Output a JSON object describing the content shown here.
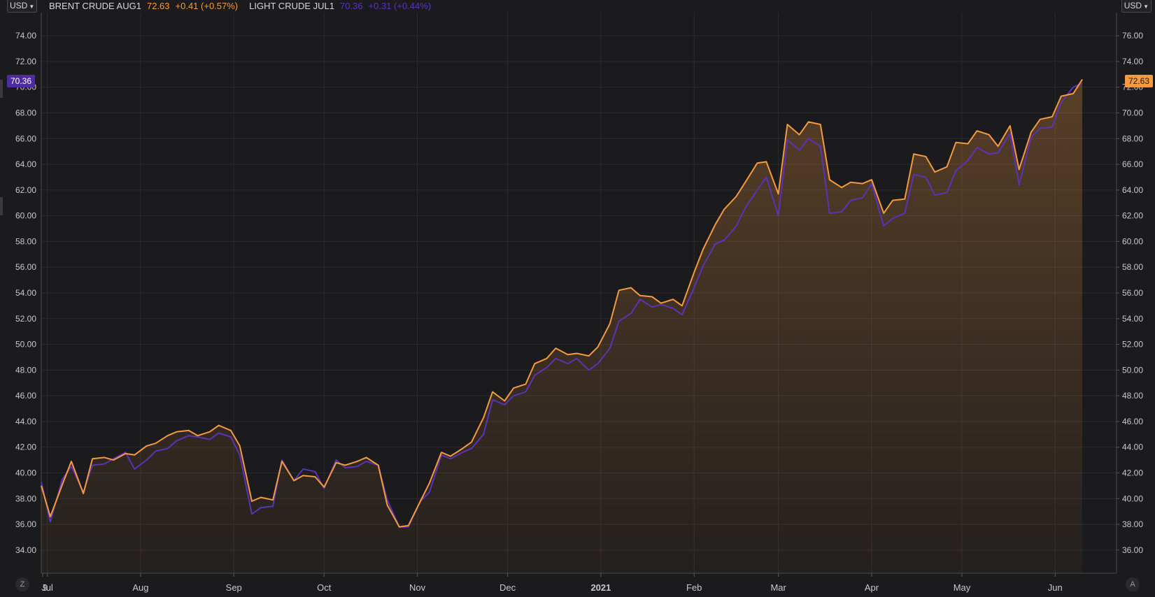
{
  "header": {
    "currency_left": "USD",
    "currency_right": "USD",
    "legend": [
      {
        "name": "BRENT CRUDE AUG1",
        "price": "72.63",
        "change": "+0.41 (+0.57%)",
        "color": "#f59a3f"
      },
      {
        "name": "LIGHT CRUDE JUL1",
        "price": "70.36",
        "change": "+0.31 (+0.44%)",
        "color": "#5a33b8"
      }
    ]
  },
  "price_tags": {
    "left": "70.36",
    "right": "72.63"
  },
  "buttons": {
    "z_label": "Z",
    "a_label": "A"
  },
  "chart_data": {
    "type": "area",
    "title": "",
    "xlabel": "",
    "ylabel": "",
    "x_ticks": [
      "9",
      "Jul",
      "Aug",
      "Sep",
      "Oct",
      "Nov",
      "Dec",
      "2021",
      "Feb",
      "Mar",
      "Apr",
      "May",
      "Jun"
    ],
    "y_ticks_left": [
      "34.00",
      "36.00",
      "38.00",
      "40.00",
      "42.00",
      "44.00",
      "46.00",
      "48.00",
      "50.00",
      "52.00",
      "54.00",
      "56.00",
      "58.00",
      "60.00",
      "62.00",
      "64.00",
      "66.00",
      "68.00",
      "70.00",
      "72.00",
      "74.00"
    ],
    "y_ticks_right": [
      "36.00",
      "38.00",
      "40.00",
      "42.00",
      "44.00",
      "46.00",
      "48.00",
      "50.00",
      "52.00",
      "54.00",
      "56.00",
      "58.00",
      "60.00",
      "62.00",
      "64.00",
      "66.00",
      "68.00",
      "70.00",
      "72.00",
      "74.00",
      "76.00"
    ],
    "ylim_left": [
      32.2,
      75.8
    ],
    "ylim_right": [
      34.2,
      77.8
    ],
    "grid": true,
    "series": [
      {
        "name": "BRENT CRUDE AUG1",
        "axis": "right",
        "color": "#f59a3f",
        "area": true,
        "x": [
          "2020-06-29",
          "2020-07-02",
          "2020-07-06",
          "2020-07-09",
          "2020-07-13",
          "2020-07-16",
          "2020-07-20",
          "2020-07-23",
          "2020-07-27",
          "2020-07-30",
          "2020-08-03",
          "2020-08-06",
          "2020-08-10",
          "2020-08-13",
          "2020-08-17",
          "2020-08-20",
          "2020-08-24",
          "2020-08-27",
          "2020-08-31",
          "2020-09-03",
          "2020-09-07",
          "2020-09-10",
          "2020-09-14",
          "2020-09-17",
          "2020-09-21",
          "2020-09-24",
          "2020-09-28",
          "2020-10-01",
          "2020-10-05",
          "2020-10-08",
          "2020-10-12",
          "2020-10-15",
          "2020-10-19",
          "2020-10-22",
          "2020-10-26",
          "2020-10-29",
          "2020-11-02",
          "2020-11-05",
          "2020-11-09",
          "2020-11-12",
          "2020-11-16",
          "2020-11-19",
          "2020-11-23",
          "2020-11-26",
          "2020-11-30",
          "2020-12-03",
          "2020-12-07",
          "2020-12-10",
          "2020-12-14",
          "2020-12-17",
          "2020-12-21",
          "2020-12-24",
          "2020-12-28",
          "2020-12-31",
          "2021-01-04",
          "2021-01-07",
          "2021-01-11",
          "2021-01-14",
          "2021-01-18",
          "2021-01-21",
          "2021-01-25",
          "2021-01-28",
          "2021-02-01",
          "2021-02-04",
          "2021-02-08",
          "2021-02-11",
          "2021-02-15",
          "2021-02-18",
          "2021-02-22",
          "2021-02-25",
          "2021-03-01",
          "2021-03-04",
          "2021-03-08",
          "2021-03-11",
          "2021-03-15",
          "2021-03-18",
          "2021-03-22",
          "2021-03-25",
          "2021-03-29",
          "2021-04-01",
          "2021-04-05",
          "2021-04-08",
          "2021-04-12",
          "2021-04-15",
          "2021-04-19",
          "2021-04-22",
          "2021-04-26",
          "2021-04-29",
          "2021-05-03",
          "2021-05-06",
          "2021-05-10",
          "2021-05-13",
          "2021-05-17",
          "2021-05-20",
          "2021-05-24",
          "2021-05-27",
          "2021-05-31",
          "2021-06-03",
          "2021-06-07",
          "2021-06-10"
        ],
        "values": [
          41.0,
          38.6,
          41.1,
          42.9,
          40.4,
          43.1,
          43.2,
          43.0,
          43.5,
          43.4,
          44.1,
          44.3,
          44.9,
          45.2,
          45.3,
          44.9,
          45.2,
          45.7,
          45.3,
          44.1,
          39.8,
          40.1,
          39.9,
          42.9,
          41.4,
          41.8,
          41.7,
          40.9,
          42.8,
          42.6,
          42.9,
          43.2,
          42.6,
          39.5,
          37.8,
          37.9,
          39.8,
          41.2,
          43.6,
          43.3,
          43.9,
          44.4,
          46.3,
          48.3,
          47.6,
          48.6,
          48.9,
          50.5,
          50.9,
          51.7,
          51.2,
          51.3,
          51.1,
          51.8,
          53.6,
          56.2,
          56.4,
          55.8,
          55.7,
          55.2,
          55.5,
          55.0,
          57.6,
          59.4,
          61.3,
          62.5,
          63.5,
          64.6,
          66.1,
          66.2,
          63.7,
          69.1,
          68.3,
          69.3,
          69.1,
          64.8,
          64.2,
          64.6,
          64.5,
          64.8,
          62.2,
          63.2,
          63.3,
          66.8,
          66.6,
          65.4,
          65.8,
          67.7,
          67.6,
          68.6,
          68.3,
          67.4,
          69.0,
          65.6,
          68.5,
          69.5,
          69.7,
          71.3,
          71.5,
          72.6
        ]
      },
      {
        "name": "LIGHT CRUDE JUL1",
        "axis": "left",
        "color": "#5a33b8",
        "area": false,
        "x": [
          "2020-06-29",
          "2020-07-02",
          "2020-07-06",
          "2020-07-09",
          "2020-07-13",
          "2020-07-16",
          "2020-07-20",
          "2020-07-23",
          "2020-07-27",
          "2020-07-30",
          "2020-08-03",
          "2020-08-06",
          "2020-08-10",
          "2020-08-13",
          "2020-08-17",
          "2020-08-20",
          "2020-08-24",
          "2020-08-27",
          "2020-08-31",
          "2020-09-03",
          "2020-09-07",
          "2020-09-10",
          "2020-09-14",
          "2020-09-17",
          "2020-09-21",
          "2020-09-24",
          "2020-09-28",
          "2020-10-01",
          "2020-10-05",
          "2020-10-08",
          "2020-10-12",
          "2020-10-15",
          "2020-10-19",
          "2020-10-22",
          "2020-10-26",
          "2020-10-29",
          "2020-11-02",
          "2020-11-05",
          "2020-11-09",
          "2020-11-12",
          "2020-11-16",
          "2020-11-19",
          "2020-11-23",
          "2020-11-26",
          "2020-11-30",
          "2020-12-03",
          "2020-12-07",
          "2020-12-10",
          "2020-12-14",
          "2020-12-17",
          "2020-12-21",
          "2020-12-24",
          "2020-12-28",
          "2020-12-31",
          "2021-01-04",
          "2021-01-07",
          "2021-01-11",
          "2021-01-14",
          "2021-01-18",
          "2021-01-21",
          "2021-01-25",
          "2021-01-28",
          "2021-02-01",
          "2021-02-04",
          "2021-02-08",
          "2021-02-11",
          "2021-02-15",
          "2021-02-18",
          "2021-02-22",
          "2021-02-25",
          "2021-03-01",
          "2021-03-04",
          "2021-03-08",
          "2021-03-11",
          "2021-03-15",
          "2021-03-18",
          "2021-03-22",
          "2021-03-25",
          "2021-03-29",
          "2021-04-01",
          "2021-04-05",
          "2021-04-08",
          "2021-04-12",
          "2021-04-15",
          "2021-04-19",
          "2021-04-22",
          "2021-04-26",
          "2021-04-29",
          "2021-05-03",
          "2021-05-06",
          "2021-05-10",
          "2021-05-13",
          "2021-05-17",
          "2021-05-20",
          "2021-05-24",
          "2021-05-27",
          "2021-05-31",
          "2021-06-03",
          "2021-06-07",
          "2021-06-10"
        ],
        "values": [
          39.3,
          36.2,
          39.5,
          40.5,
          38.5,
          40.6,
          40.7,
          41.1,
          41.6,
          40.3,
          41.0,
          41.7,
          41.9,
          42.5,
          42.9,
          42.8,
          42.6,
          43.1,
          42.8,
          41.4,
          36.8,
          37.3,
          37.4,
          41.0,
          39.4,
          40.3,
          40.1,
          38.8,
          41.0,
          40.4,
          40.5,
          40.9,
          40.6,
          37.9,
          35.8,
          35.8,
          37.8,
          38.5,
          41.4,
          41.1,
          41.6,
          41.9,
          43.0,
          45.7,
          45.3,
          46.0,
          46.3,
          47.6,
          48.2,
          48.9,
          48.5,
          48.9,
          48.0,
          48.5,
          49.7,
          51.8,
          52.4,
          53.5,
          52.9,
          53.1,
          52.8,
          52.3,
          54.4,
          56.1,
          57.8,
          58.1,
          59.2,
          60.6,
          62.0,
          63.0,
          60.0,
          65.9,
          65.1,
          66.0,
          65.4,
          60.2,
          60.3,
          61.2,
          61.4,
          62.5,
          59.2,
          59.8,
          60.2,
          63.2,
          63.0,
          61.6,
          61.8,
          63.5,
          64.3,
          65.3,
          64.8,
          64.9,
          66.4,
          62.4,
          66.1,
          66.8,
          66.9,
          68.8,
          70.0,
          70.3
        ]
      }
    ]
  }
}
